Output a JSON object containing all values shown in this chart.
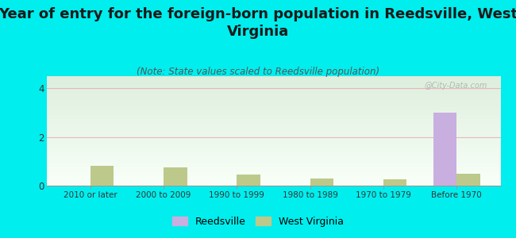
{
  "title": "Year of entry for the foreign-born population in Reedsville, West\nVirginia",
  "subtitle": "(Note: State values scaled to Reedsville population)",
  "categories": [
    "2010 or later",
    "2000 to 2009",
    "1990 to 1999",
    "1980 to 1989",
    "1970 to 1979",
    "Before 1970"
  ],
  "reedsville_values": [
    0,
    0,
    0,
    0,
    0,
    3.0
  ],
  "west_virginia_values": [
    0.8,
    0.75,
    0.45,
    0.3,
    0.25,
    0.5
  ],
  "reedsville_color": "#c9aee0",
  "west_virginia_color": "#bcc98a",
  "background_color": "#00eeee",
  "plot_bg_top": "#ddeedd",
  "plot_bg_bottom": "#f8fff8",
  "ylim": [
    0,
    4.5
  ],
  "yticks": [
    0,
    2,
    4
  ],
  "bar_width": 0.32,
  "title_fontsize": 13,
  "subtitle_fontsize": 8.5,
  "watermark": "@City-Data.com"
}
